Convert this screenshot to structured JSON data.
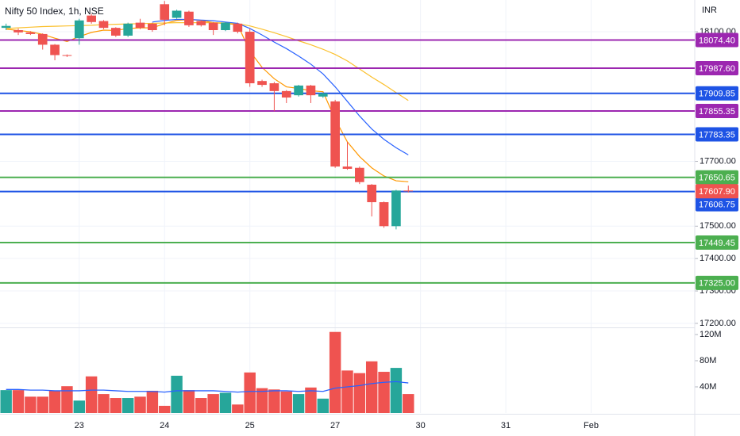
{
  "chart_data": {
    "type": "candlestick",
    "title": "Nifty 50 Index, 1h, NSE",
    "currency": "INR",
    "up_color": "#26a69a",
    "down_color": "#ef5350",
    "open": [
      18112,
      18105,
      18098,
      18093,
      18060,
      18028,
      18080,
      18150,
      18133,
      18112,
      18088,
      18128,
      18125,
      18185,
      18143,
      18162,
      18133,
      18128,
      18105,
      18125,
      18100,
      17948,
      17941,
      17917,
      17904,
      17934,
      17900,
      17885,
      17684,
      17680,
      17628,
      17574,
      17500,
      17610
    ],
    "high": [
      18125,
      18110,
      18102,
      18095,
      18062,
      18030,
      18140,
      18155,
      18136,
      18114,
      18128,
      18140,
      18128,
      18195,
      18168,
      18165,
      18136,
      18130,
      18130,
      18128,
      18110,
      17952,
      17945,
      17920,
      17936,
      17936,
      17912,
      17890,
      17760,
      17684,
      17630,
      17576,
      17612,
      17625
    ],
    "low": [
      18105,
      18090,
      18090,
      18045,
      18012,
      18022,
      18060,
      18125,
      18108,
      18084,
      18084,
      18108,
      18100,
      18120,
      18140,
      18115,
      18116,
      18090,
      18102,
      18095,
      17930,
      17930,
      17855,
      17880,
      17900,
      17880,
      17896,
      17680,
      17674,
      17630,
      17530,
      17495,
      17490,
      17604
    ],
    "close": [
      18118,
      18098,
      18093,
      18060,
      18028,
      18026,
      18135,
      18130,
      18112,
      18088,
      18125,
      18112,
      18105,
      18137,
      18165,
      18120,
      18120,
      18105,
      18128,
      18100,
      17941,
      17936,
      17917,
      17897,
      17934,
      17904,
      17910,
      17684,
      17677,
      17636,
      17574,
      17500,
      17610,
      17607.9
    ],
    "last_label": "17607.90",
    "ylim": [
      17190,
      18198
    ],
    "yticks": [
      {
        "value": 18100,
        "label": "18100.00"
      },
      {
        "value": 17700,
        "label": "17700.00"
      },
      {
        "value": 17500,
        "label": "17500.00"
      },
      {
        "value": 17400,
        "label": "17400.00"
      },
      {
        "value": 17300,
        "label": "17300.00"
      },
      {
        "value": 17200,
        "label": "17200.00"
      }
    ],
    "xlim": [
      -0.5,
      56.5
    ],
    "xticks": [
      {
        "value": 6,
        "label": "23"
      },
      {
        "value": 13,
        "label": "24"
      },
      {
        "value": 20,
        "label": "25"
      },
      {
        "value": 27,
        "label": "27"
      },
      {
        "value": 34,
        "label": "30"
      },
      {
        "value": 41,
        "label": "31"
      },
      {
        "value": 48,
        "label": "Feb"
      }
    ],
    "levels": {
      "values": [
        18074.4,
        17987.6,
        17909.85,
        17855.35,
        17783.35,
        17650.65,
        17606.75,
        17449.45,
        17325
      ],
      "value_labels": [
        "18074.40",
        "17987.60",
        "17909.85",
        "17855.35",
        "17783.35",
        "17650.65",
        "17606.75",
        "17449.45",
        "17325.00"
      ],
      "colors": [
        "#9c27b0",
        "#9c27b0",
        "#1e53e5",
        "#9c27b0",
        "#1e53e5",
        "#4caf50",
        "#1e53e5",
        "#4caf50",
        "#4caf50"
      ]
    },
    "lines": [
      {
        "color": "#ff9800",
        "values": [
          18108,
          18104,
          18100,
          18092,
          18080,
          18070,
          18085,
          18098,
          18105,
          18104,
          18110,
          18112,
          18112,
          18125,
          18135,
          18138,
          18135,
          18128,
          18125,
          18122,
          18040,
          17990,
          17955,
          17930,
          17925,
          17918,
          17915,
          17830,
          17760,
          17715,
          17680,
          17655,
          17640,
          17637
        ]
      },
      {
        "color": "#fbc02d",
        "values": [
          18110,
          18112,
          18114,
          18116,
          18117,
          18118,
          18119,
          18120,
          18122,
          18123,
          18124,
          18125,
          18126,
          18127,
          18128,
          18128,
          18128,
          18128,
          18127,
          18125,
          18118,
          18108,
          18097,
          18085,
          18072,
          18060,
          18046,
          18030,
          18010,
          17985,
          17960,
          17937,
          17912,
          17888
        ]
      },
      {
        "color": "#2962ff",
        "values": [
          null,
          null,
          null,
          null,
          null,
          null,
          null,
          null,
          null,
          null,
          null,
          null,
          18130,
          18135,
          18138,
          18138,
          18136,
          18134,
          18130,
          18126,
          18110,
          18090,
          18068,
          18048,
          18025,
          18000,
          17970,
          17930,
          17885,
          17840,
          17800,
          17768,
          17742,
          17720
        ]
      }
    ],
    "volume": {
      "values": [
        35,
        35,
        25,
        25,
        34,
        41,
        19,
        56,
        29,
        23,
        23,
        25,
        34,
        11,
        57,
        35,
        23,
        29,
        31,
        13,
        62,
        38,
        36,
        33,
        29,
        39,
        22,
        124,
        65,
        61,
        79,
        63,
        69,
        29
      ],
      "ma": {
        "color": "#2962ff",
        "values": [
          36,
          36,
          35,
          35,
          34,
          34,
          34,
          35,
          35,
          34,
          33,
          33,
          33,
          32,
          34,
          34,
          34,
          34,
          33,
          32,
          33,
          33,
          34,
          34,
          33,
          34,
          33,
          38,
          40,
          42,
          45,
          47,
          48,
          46
        ]
      },
      "ylim": [
        0,
        128.5
      ],
      "yticks": [
        {
          "value": 120,
          "label": "120M"
        },
        {
          "value": 80,
          "label": "80M"
        },
        {
          "value": 40,
          "label": "40M"
        }
      ]
    }
  }
}
